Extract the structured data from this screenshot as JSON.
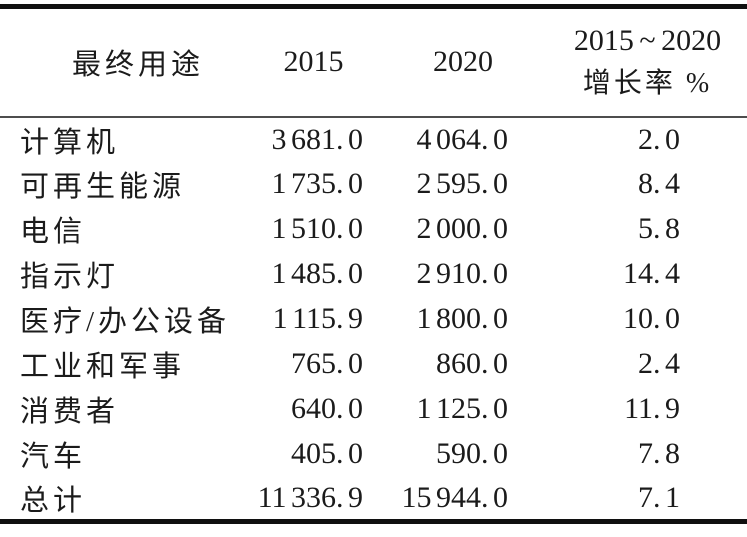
{
  "table": {
    "title_hint": "LED end-use table",
    "colors": {
      "background": "#ffffff",
      "text": "#1b1b1b",
      "border_heavy": "#101010",
      "border_light": "#4d4d4d"
    },
    "header": {
      "col1": "最终用途",
      "col2": "2015",
      "col3": "2020",
      "col4_line1": "2015 ~ 2020",
      "col4_line2": "增长率 %"
    },
    "rows": [
      {
        "label": "计算机",
        "y2015": "3 681. 0",
        "y2020": "4 064. 0",
        "growth": "2. 0"
      },
      {
        "label": "可再生能源",
        "y2015": "1 735. 0",
        "y2020": "2 595. 0",
        "growth": "8. 4"
      },
      {
        "label": "电信",
        "y2015": "1 510. 0",
        "y2020": "2 000. 0",
        "growth": "5. 8"
      },
      {
        "label": "指示灯",
        "y2015": "1 485. 0",
        "y2020": "2 910. 0",
        "growth": "14. 4"
      },
      {
        "label": "医疗/办公设备",
        "y2015": "1 115. 9",
        "y2020": "1 800. 0",
        "growth": "10. 0"
      },
      {
        "label": "工业和军事",
        "y2015": "765. 0",
        "y2020": "860. 0",
        "growth": "2. 4"
      },
      {
        "label": "消费者",
        "y2015": "640. 0",
        "y2020": "1 125. 0",
        "growth": "11. 9"
      },
      {
        "label": "汽车",
        "y2015": "405. 0",
        "y2020": "590. 0",
        "growth": "7. 8"
      },
      {
        "label": "总计",
        "y2015": "11 336. 9",
        "y2020": "15 944. 0",
        "growth": "7. 1"
      }
    ]
  }
}
